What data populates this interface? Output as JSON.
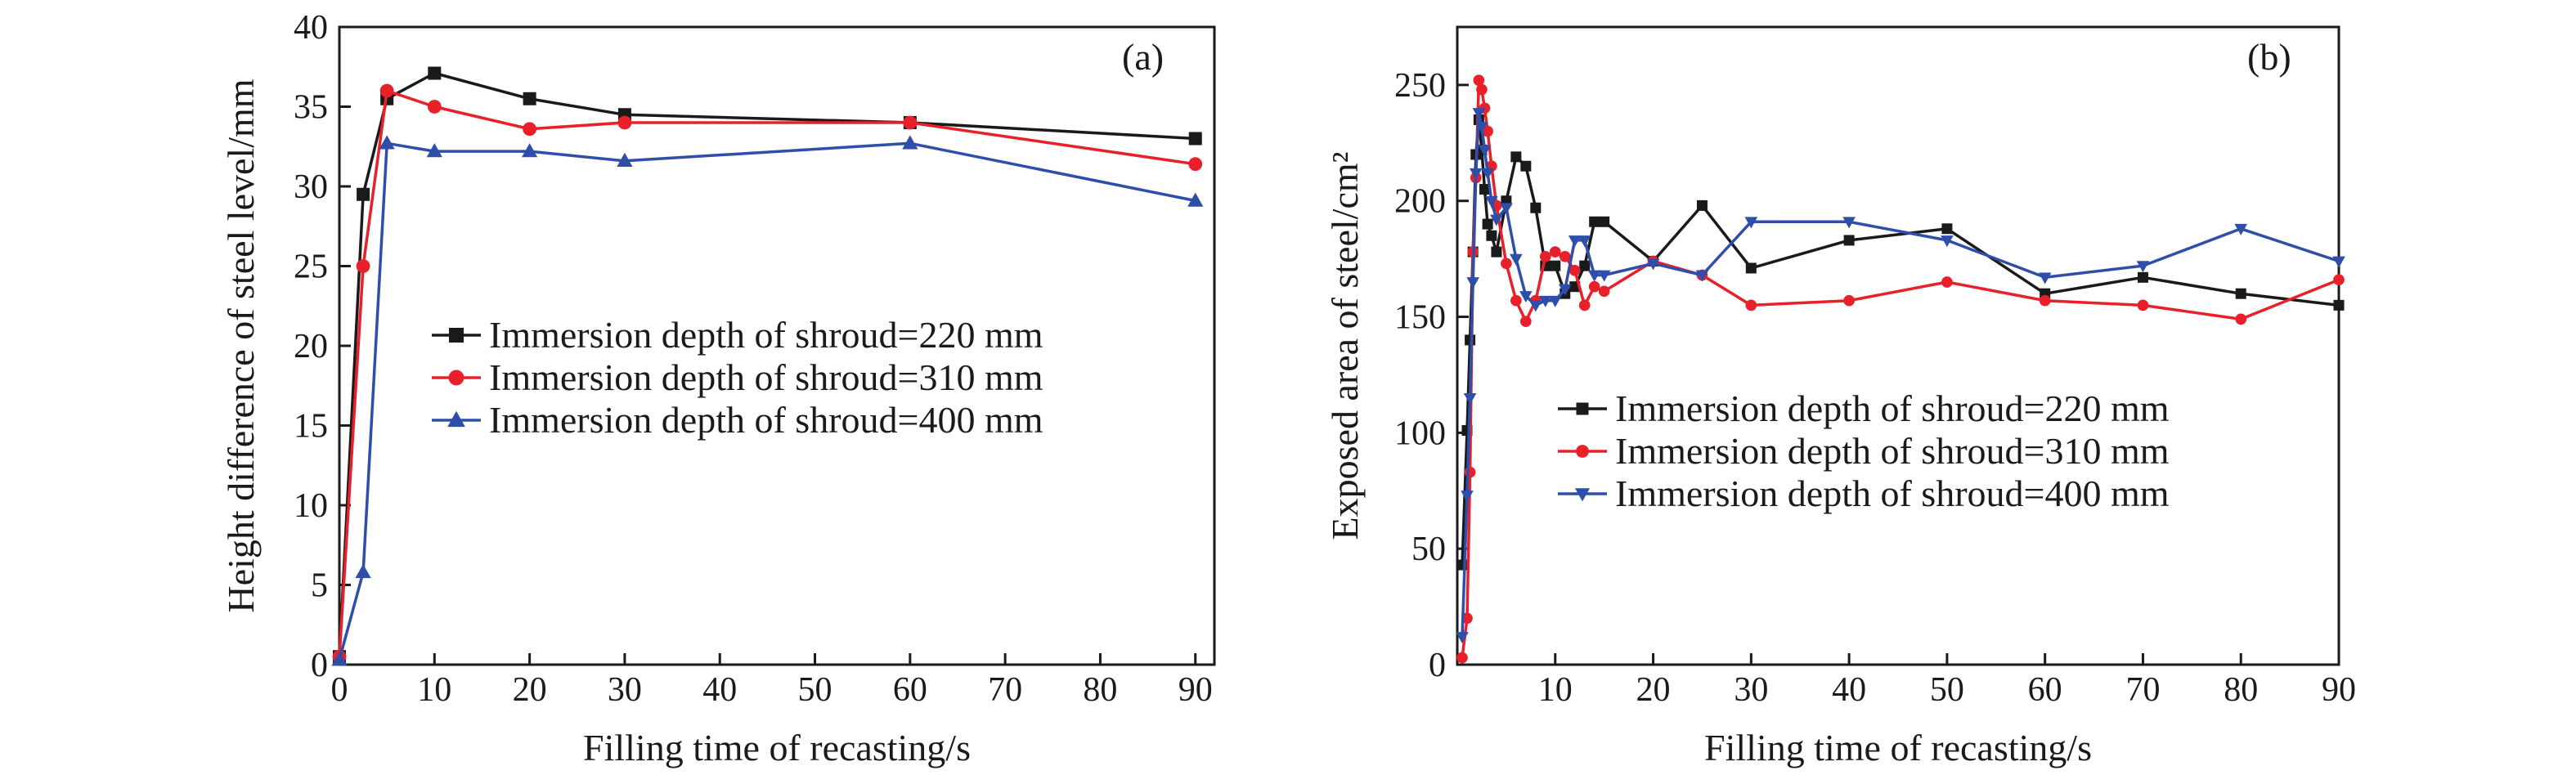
{
  "chart_data": [
    {
      "panel": "(a)",
      "type": "line",
      "xlabel": "Filling time of recasting/s",
      "ylabel": "Height difference of steel level/mm",
      "xlim": [
        0,
        92
      ],
      "ylim": [
        0,
        40
      ],
      "xticks": [
        0,
        10,
        20,
        30,
        40,
        50,
        60,
        70,
        80,
        90
      ],
      "yticks": [
        0,
        5,
        10,
        15,
        20,
        25,
        30,
        35,
        40
      ],
      "legend_position": "center-right",
      "grid": false,
      "series": [
        {
          "name": "Immersion depth of shroud=220 mm",
          "color": "#1a1a1a",
          "marker": "square",
          "x": [
            0,
            2.5,
            5,
            10,
            20,
            30,
            60,
            90
          ],
          "y": [
            0.5,
            29.5,
            35.5,
            37.1,
            35.5,
            34.5,
            34.0,
            33.0
          ]
        },
        {
          "name": "Immersion depth of shroud=310 mm",
          "color": "#e8202a",
          "marker": "circle",
          "x": [
            0,
            2.5,
            5,
            10,
            20,
            30,
            60,
            90
          ],
          "y": [
            0.5,
            25.0,
            36.0,
            35.0,
            33.6,
            34.0,
            34.0,
            31.4
          ]
        },
        {
          "name": "Immersion depth of shroud=400 mm",
          "color": "#2e4eaa",
          "marker": "triangle-up",
          "x": [
            0,
            2.5,
            5,
            10,
            20,
            30,
            60,
            90
          ],
          "y": [
            0.3,
            5.8,
            32.7,
            32.2,
            32.2,
            31.6,
            32.7,
            29.1
          ]
        }
      ]
    },
    {
      "panel": "(b)",
      "type": "line",
      "xlabel": "Filling time of recasting/s",
      "ylabel": "Exposed area of steel/cm²",
      "xlim": [
        0,
        90
      ],
      "ylim": [
        0,
        275
      ],
      "xticks": [
        10,
        20,
        30,
        40,
        50,
        60,
        70,
        80,
        90
      ],
      "yticks": [
        0,
        50,
        100,
        150,
        200,
        250
      ],
      "legend_position": "center-right",
      "grid": false,
      "series": [
        {
          "name": "Immersion depth of shroud=220 mm",
          "color": "#1a1a1a",
          "marker": "square",
          "x": [
            0.5,
            1,
            1.3,
            1.6,
            1.9,
            2.2,
            2.5,
            2.8,
            3.1,
            3.5,
            4,
            5,
            6,
            7,
            8,
            9,
            10,
            11,
            12,
            13,
            14,
            15,
            20,
            25,
            30,
            40,
            50,
            60,
            70,
            80,
            90
          ],
          "y": [
            43,
            101,
            140,
            178,
            220,
            235,
            222,
            205,
            190,
            185,
            178,
            200,
            219,
            215,
            197,
            172,
            172,
            160,
            163,
            172,
            191,
            191,
            174,
            198,
            171,
            183,
            188,
            160,
            167,
            160,
            155
          ]
        },
        {
          "name": "Immersion depth of shroud=310 mm",
          "color": "#e8202a",
          "marker": "circle",
          "x": [
            0.5,
            1,
            1.3,
            1.6,
            1.9,
            2.2,
            2.5,
            2.8,
            3.1,
            3.5,
            4,
            5,
            6,
            7,
            8,
            9,
            10,
            11,
            12,
            13,
            14,
            15,
            20,
            25,
            30,
            40,
            50,
            60,
            70,
            80,
            90
          ],
          "y": [
            3,
            20,
            83,
            178,
            210,
            252,
            248,
            240,
            230,
            215,
            198,
            173,
            157,
            148,
            157,
            176,
            178,
            176,
            170,
            155,
            163,
            161,
            174,
            168,
            155,
            157,
            165,
            157,
            155,
            149,
            166
          ]
        },
        {
          "name": "Immersion depth of shroud=400 mm",
          "color": "#2e4eaa",
          "marker": "triangle-down",
          "x": [
            0.5,
            1,
            1.3,
            1.6,
            1.9,
            2.2,
            2.5,
            2.8,
            3.1,
            3.5,
            4,
            5,
            6,
            7,
            8,
            9,
            10,
            11,
            12,
            13,
            14,
            15,
            20,
            25,
            30,
            40,
            50,
            60,
            70,
            80,
            90
          ],
          "y": [
            12,
            73,
            115,
            165,
            212,
            238,
            232,
            222,
            212,
            200,
            192,
            197,
            175,
            159,
            155,
            157,
            157,
            162,
            183,
            183,
            168,
            168,
            173,
            168,
            191,
            191,
            183,
            167,
            172,
            188,
            174
          ]
        }
      ]
    }
  ]
}
